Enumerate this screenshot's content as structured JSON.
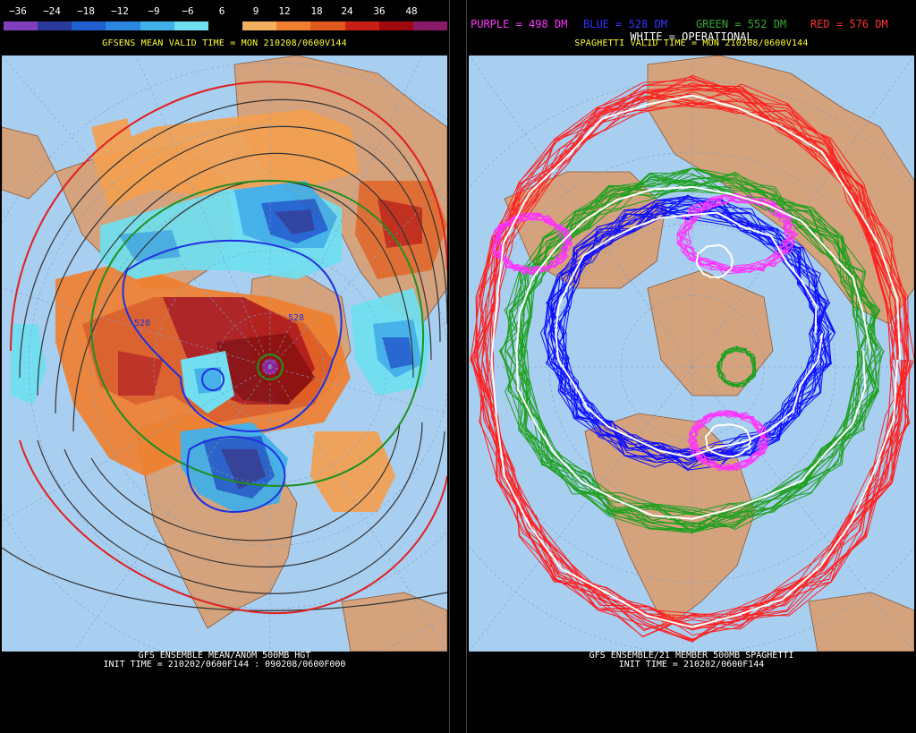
{
  "left_panel": {
    "legend": {
      "labels": [
        "−36",
        "−24",
        "−18",
        "−12",
        "−9",
        "−6",
        "6",
        "9",
        "12",
        "18",
        "24",
        "36",
        "48"
      ],
      "colors": [
        "#7f3fbf",
        "#2a3a9c",
        "#1f5fd0",
        "#2a86e0",
        "#3fb0ea",
        "#6fe0f0",
        "#000000",
        "#f0b060",
        "#f08030",
        "#e05a20",
        "#c82018",
        "#a00810",
        "#8a1a6a"
      ]
    },
    "subtitle": "GFSENS MEAN VALID TIME = MON 210208/0600V144",
    "contour_labels": [
      "528",
      "528"
    ],
    "caption_line1": "GFS ENSEMBLE MEAN/ANOM 500MB HGT",
    "caption_line2": "INIT TIME = 210202/0600F144 : 090208/0600F000"
  },
  "right_panel": {
    "legend": [
      {
        "text": "PURPLE = 498 DM",
        "color": "#ff33ff"
      },
      {
        "text": "BLUE = 528 DM",
        "color": "#3333ff"
      },
      {
        "text": "GREEN = 552 DM",
        "color": "#33aa33"
      },
      {
        "text": "RED = 576 DM",
        "color": "#ff3333"
      }
    ],
    "operational_label": "WHITE = OPERATIONAL",
    "subtitle": "SPAGHETTI VALID TIME = MON 210208/0600V144",
    "caption_line1": "GFS ENSEMBLE/21 MEMBER 500MB SPAGHETTI",
    "caption_line2": "INIT TIME = 210202/0600F144"
  }
}
